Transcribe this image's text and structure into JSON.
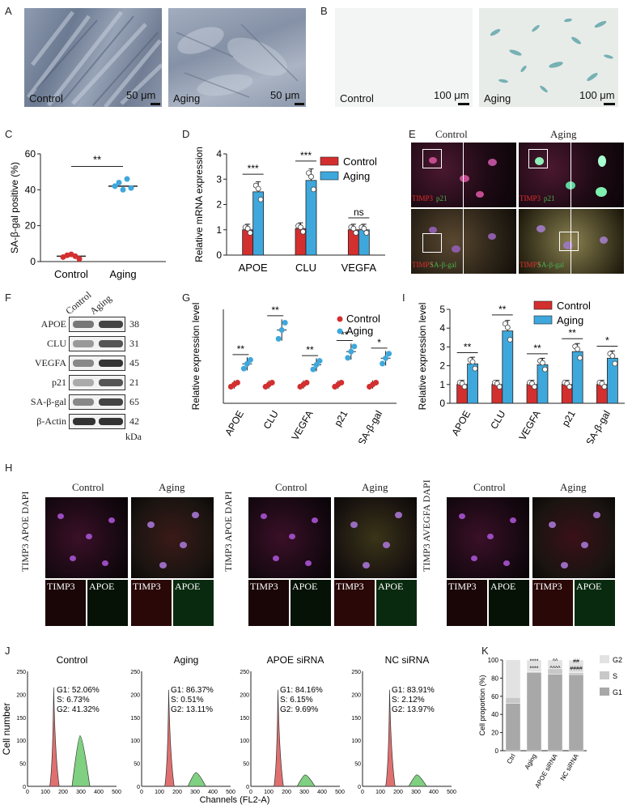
{
  "panels": {
    "A": "A",
    "B": "B",
    "C": "C",
    "D": "D",
    "E": "E",
    "F": "F",
    "G": "G",
    "H": "H",
    "I": "I",
    "J": "J",
    "K": "K"
  },
  "panel_a": {
    "left_label": "Control",
    "left_scale": "50 μm",
    "right_label": "Aging",
    "right_scale": "50 μm"
  },
  "panel_b": {
    "left_label": "Control",
    "left_scale": "100 μm",
    "right_label": "Aging",
    "right_scale": "100 μm"
  },
  "panel_e": {
    "col_control": "Control",
    "col_aging": "Aging",
    "r1_marker1": "TIMP3",
    "r1_marker2": "p21",
    "r2_marker1": "TIMP3",
    "r2_marker2": "SA-β-gal"
  },
  "panel_f": {
    "header": [
      "Control",
      "Aging"
    ],
    "rows": [
      {
        "name": "APOE",
        "kda": "38"
      },
      {
        "name": "CLU",
        "kda": "31"
      },
      {
        "name": "VEGFA",
        "kda": "45"
      },
      {
        "name": "p21",
        "kda": "21"
      },
      {
        "name": "SA-β-gal",
        "kda": "65"
      },
      {
        "name": "β-Actin",
        "kda": "42"
      }
    ],
    "unit": "kDa"
  },
  "panel_h": {
    "groups": [
      {
        "c1": "Control",
        "c2": "Aging",
        "ylabel": "TIMP3 APOE DAPI",
        "i1": "TIMP3",
        "i2": "APOE",
        "i3": "TIMP3",
        "i4": "APOE"
      },
      {
        "c1": "Control",
        "c2": "Aging",
        "ylabel": "TIMP3 APOE DAPI",
        "i1": "TIMP3",
        "i2": "APOE",
        "i3": "TIMP3",
        "i4": "APOE"
      },
      {
        "c1": "Control",
        "c2": "Aging",
        "ylabel": "TIMP3 AVEGFA DAPI",
        "i1": "TIMP3",
        "i2": "APOE",
        "i3": "TIMP3",
        "i4": "APOE"
      }
    ]
  },
  "panel_j": {
    "ylabel": "Cell number",
    "xlabel": "Channels (FL2-A)",
    "plots": [
      {
        "title": "Control",
        "g1": "G1: 52.06%",
        "s": "S: 6.73%",
        "g2": "G2: 41.32%"
      },
      {
        "title": "Aging",
        "g1": "G1: 86.37%",
        "s": "S: 0.51%",
        "g2": "G2: 13.11%"
      },
      {
        "title": "APOE siRNA",
        "g1": "G1: 84.16%",
        "s": "S: 6.15%",
        "g2": "G2: 9.69%"
      },
      {
        "title": "NC siRNA",
        "g1": "G1: 83.91%",
        "s": "S: 2.12%",
        "g2": "G2: 13.97%"
      }
    ]
  },
  "colors": {
    "control": "#d32f2f",
    "aging": "#3ea8dc",
    "g1": "#a8a8a8",
    "s": "#c8c8c8",
    "g2": "#e2e2e2"
  },
  "chart_data": [
    {
      "id": "C",
      "type": "scatter",
      "ylabel": "SA-β-gal positive (%)",
      "ylim": [
        0,
        60
      ],
      "yticks": [
        0,
        20,
        40,
        60
      ],
      "categories": [
        "Control",
        "Aging"
      ],
      "series": [
        {
          "name": "Control",
          "values": [
            2.5,
            3.5,
            4,
            3,
            1.5
          ]
        },
        {
          "name": "Aging",
          "values": [
            42,
            44,
            40,
            46,
            41
          ]
        }
      ],
      "means": [
        3,
        42
      ],
      "significance": "**"
    },
    {
      "id": "D",
      "type": "bar",
      "ylabel": "Relative mRNA expression",
      "ylim": [
        0,
        4
      ],
      "yticks": [
        0,
        1,
        2,
        3,
        4
      ],
      "categories": [
        "APOE",
        "CLU",
        "VEGFA"
      ],
      "series": [
        {
          "name": "Control",
          "values": [
            1.0,
            1.05,
            1.0
          ]
        },
        {
          "name": "Aging",
          "values": [
            2.5,
            2.95,
            1.0
          ]
        }
      ],
      "significance": [
        "***",
        "***",
        "ns"
      ],
      "legend": "top-right"
    },
    {
      "id": "G",
      "type": "scatter",
      "ylabel": "Relative expression level",
      "ylim": [
        0,
        5
      ],
      "categories": [
        "APOE",
        "CLU",
        "VEGFA",
        "p21",
        "SA-β-gal"
      ],
      "series": [
        {
          "name": "Control",
          "values": [
            1.0,
            1.0,
            1.0,
            1.0,
            1.0
          ]
        },
        {
          "name": "Aging",
          "values": [
            2.1,
            3.9,
            2.05,
            2.75,
            2.4
          ]
        }
      ],
      "significance": [
        "**",
        "**",
        "**",
        "**",
        "*"
      ],
      "legend": "top-right"
    },
    {
      "id": "I",
      "type": "bar",
      "ylabel": "Relative expression level",
      "ylim": [
        0,
        5
      ],
      "yticks": [
        0,
        1,
        2,
        3,
        4,
        5
      ],
      "categories": [
        "APOE",
        "CLU",
        "VEGFA",
        "p21",
        "SA-β-gal"
      ],
      "series": [
        {
          "name": "Control",
          "values": [
            1.0,
            1.0,
            1.0,
            1.0,
            1.0
          ]
        },
        {
          "name": "Aging",
          "values": [
            2.1,
            3.85,
            2.05,
            2.75,
            2.4
          ]
        }
      ],
      "significance": [
        "**",
        "**",
        "**",
        "**",
        "*"
      ],
      "legend": "top-right"
    },
    {
      "id": "J",
      "type": "area",
      "xlim": [
        0,
        500
      ],
      "ylim": [
        0,
        250
      ],
      "xticks": [
        0,
        100,
        200,
        300,
        400,
        500
      ],
      "yticks": [
        0,
        50,
        100,
        150,
        200,
        250
      ],
      "xlabel": "Channels (FL2-A)",
      "ylabel": "Cell number",
      "series": [
        {
          "name": "Control",
          "g1_peak": [
            150,
            215
          ],
          "g2_peak": [
            295,
            110
          ]
        },
        {
          "name": "Aging",
          "g1_peak": [
            155,
            210
          ],
          "g2_peak": [
            305,
            30
          ]
        },
        {
          "name": "APOE siRNA",
          "g1_peak": [
            155,
            210
          ],
          "g2_peak": [
            305,
            25
          ]
        },
        {
          "name": "NC siRNA",
          "g1_peak": [
            155,
            210
          ],
          "g2_peak": [
            305,
            25
          ]
        }
      ]
    },
    {
      "id": "K",
      "type": "bar",
      "ylabel": "Cell proportion (%)",
      "ylim": [
        0,
        100
      ],
      "yticks": [
        0,
        20,
        40,
        60,
        80,
        100
      ],
      "categories": [
        "Ctrl",
        "Aging",
        "APOE siRNA",
        "NC siRNA"
      ],
      "series": [
        {
          "name": "G1",
          "values": [
            52.06,
            86.37,
            84.16,
            83.91
          ]
        },
        {
          "name": "S",
          "values": [
            6.73,
            0.51,
            6.15,
            2.12
          ]
        },
        {
          "name": "G2",
          "values": [
            41.32,
            13.11,
            9.69,
            13.97
          ]
        }
      ],
      "annotations": [
        {
          "category": "Aging",
          "upper": "****",
          "lower": "****"
        },
        {
          "category": "APOE siRNA",
          "upper": "^^",
          "lower": "^^^^"
        },
        {
          "category": "NC siRNA",
          "upper": "##",
          "lower": "####"
        }
      ],
      "legend": "right"
    }
  ]
}
